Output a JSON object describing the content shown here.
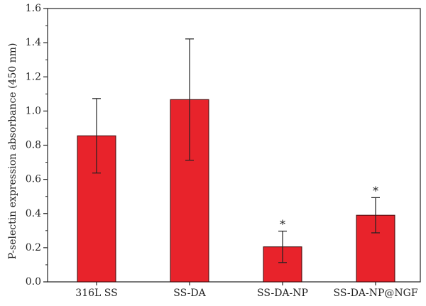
{
  "chart_data": {
    "type": "bar",
    "categories": [
      "316L SS",
      "SS-DA",
      "SS-DA-NP",
      "SS-DA-NP@NGF"
    ],
    "values": [
      0.855,
      1.067,
      0.205,
      0.39
    ],
    "errors": [
      0.218,
      0.355,
      0.092,
      0.103
    ],
    "annotations": [
      "",
      "",
      "*",
      "*"
    ],
    "ylabel": "P-selectin expression absorbance (450 nm)",
    "xlabel": "",
    "ylim": [
      0,
      1.6
    ],
    "yticks": [
      0.0,
      0.2,
      0.4,
      0.6,
      0.8,
      1.0,
      1.2,
      1.4,
      1.6
    ],
    "ytick_labels": [
      "0.0",
      "0.2",
      "0.4",
      "0.6",
      "0.8",
      "1.0",
      "1.2",
      "1.4",
      "1.6"
    ],
    "grid": false,
    "colors": {
      "bar_fill": "#e8232b",
      "bar_stroke": "#3a0a0a",
      "axis": "#222222"
    }
  }
}
